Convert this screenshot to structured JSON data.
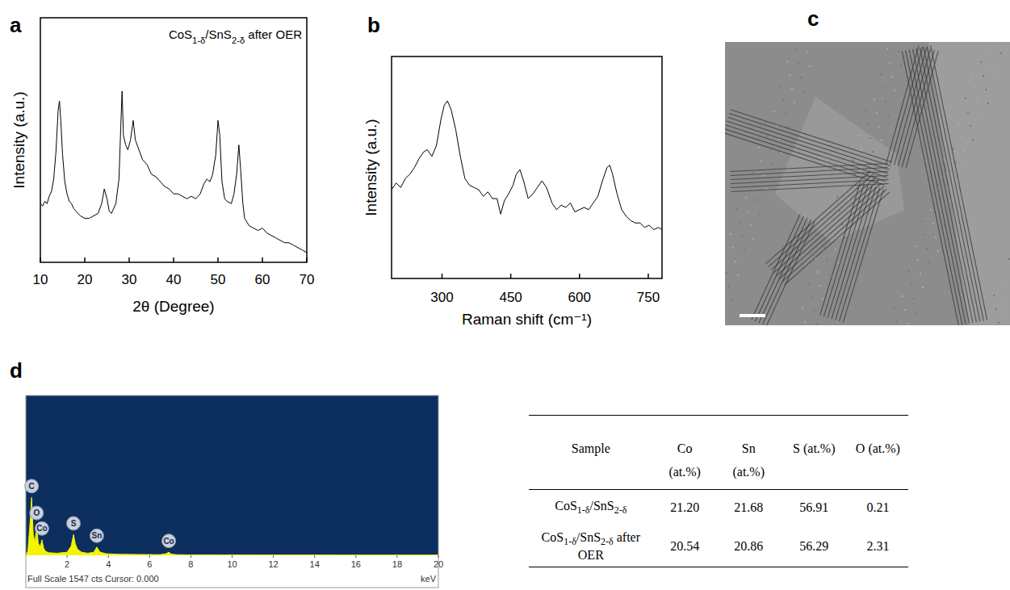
{
  "panel_labels": [
    "a",
    "b",
    "c",
    "d"
  ],
  "chart_data": [
    {
      "type": "line",
      "title": "CoS1-δ/SnS2-δ after OER",
      "x_label": "2θ (Degree)",
      "y_label": "Intensity (a.u.)",
      "xlim": [
        10,
        70
      ],
      "xticks": [
        10,
        20,
        30,
        40,
        50,
        60,
        70
      ],
      "ylim": [
        0,
        100
      ],
      "tick_labels": "x",
      "color": "#000000",
      "x": [
        10,
        10.5,
        11,
        11.5,
        12,
        12.5,
        13,
        13.5,
        14,
        14.3,
        14.6,
        15,
        15.5,
        16,
        16.5,
        17,
        17.5,
        18,
        19,
        20,
        21,
        22,
        23,
        23.8,
        24.4,
        25,
        25.5,
        26,
        27,
        27.7,
        28.1,
        28.4,
        28.7,
        29.2,
        29.7,
        30.3,
        30.9,
        31.4,
        32,
        33,
        34,
        35,
        36,
        37,
        38,
        39,
        40,
        41,
        42,
        43,
        44,
        45,
        46,
        46.8,
        47.5,
        48.2,
        48.8,
        49.5,
        50,
        50.4,
        50.9,
        51.5,
        52,
        53,
        53.6,
        54.2,
        54.7,
        55.1,
        55.6,
        56,
        57,
        58,
        59,
        60,
        61,
        62,
        63,
        64,
        65,
        66,
        67,
        68,
        69,
        70
      ],
      "values": [
        24,
        23,
        25,
        24,
        27,
        29,
        34,
        45,
        62,
        66,
        58,
        44,
        33,
        28,
        25,
        24,
        22,
        21,
        19,
        18,
        18,
        19,
        20,
        24,
        30,
        26,
        21,
        20,
        24,
        34,
        55,
        70,
        52,
        48,
        46,
        50,
        58,
        50,
        47,
        42,
        40,
        36,
        35,
        33,
        31,
        30,
        28,
        28,
        27,
        26,
        27,
        26,
        28,
        32,
        34,
        33,
        36,
        44,
        58,
        52,
        33,
        26,
        25,
        24,
        28,
        36,
        48,
        38,
        24,
        18,
        15,
        14,
        13,
        14,
        12,
        11,
        10,
        9,
        8,
        8,
        7,
        6,
        5,
        4
      ]
    },
    {
      "type": "line",
      "x_label": "Raman shift (cm⁻¹)",
      "y_label": "Intensity (a.u.)",
      "xlim": [
        190,
        780
      ],
      "xticks": [
        300,
        450,
        600,
        750
      ],
      "ylim": [
        0,
        100
      ],
      "tick_labels": "x",
      "color": "#000000",
      "x": [
        190,
        200,
        210,
        220,
        230,
        240,
        250,
        260,
        268,
        278,
        288,
        298,
        305,
        312,
        320,
        330,
        340,
        350,
        360,
        370,
        380,
        390,
        400,
        410,
        420,
        428,
        436,
        445,
        455,
        462,
        470,
        478,
        488,
        498,
        508,
        518,
        528,
        540,
        550,
        560,
        570,
        580,
        590,
        600,
        610,
        620,
        630,
        640,
        650,
        660,
        666,
        672,
        682,
        692,
        702,
        712,
        722,
        732,
        742,
        752,
        762,
        772,
        780
      ],
      "values": [
        40,
        43,
        41,
        45,
        47,
        50,
        54,
        57,
        58,
        55,
        60,
        72,
        78,
        80,
        76,
        67,
        55,
        45,
        42,
        41,
        40,
        37,
        39,
        36,
        36,
        29,
        35,
        38,
        42,
        47,
        49,
        44,
        36,
        38,
        41,
        44,
        41,
        34,
        31,
        33,
        32,
        34,
        30,
        31,
        32,
        31,
        34,
        37,
        44,
        50,
        51,
        47,
        38,
        31,
        28,
        26,
        25,
        25,
        23,
        24,
        22,
        23,
        22
      ]
    },
    {
      "type": "area",
      "x_label": "keV",
      "caption": "Full Scale 1547 cts Cursor: 0.000",
      "xlim": [
        0,
        20
      ],
      "xticks": [
        2,
        4,
        6,
        8,
        10,
        12,
        14,
        16,
        18,
        20
      ],
      "ylim": [
        0,
        1547
      ],
      "tick_labels": "x",
      "color": "#f5f500",
      "x": [
        0,
        0.1,
        0.2,
        0.28,
        0.36,
        0.45,
        0.52,
        0.6,
        0.7,
        0.78,
        0.86,
        0.95,
        1.1,
        1.5,
        2.0,
        2.2,
        2.31,
        2.4,
        2.5,
        2.7,
        3.0,
        3.3,
        3.44,
        3.6,
        3.9,
        4.5,
        5.5,
        6.5,
        6.8,
        6.93,
        7.05,
        7.3,
        8,
        10,
        12,
        14,
        16,
        18,
        20
      ],
      "values": [
        0,
        40,
        300,
        560,
        200,
        120,
        300,
        120,
        80,
        150,
        70,
        40,
        25,
        20,
        30,
        90,
        200,
        110,
        60,
        30,
        20,
        30,
        80,
        30,
        15,
        10,
        8,
        6,
        15,
        30,
        12,
        6,
        4,
        3,
        2,
        2,
        1,
        1,
        1
      ],
      "annotations": [
        {
          "text": "C",
          "x": 0.28
        },
        {
          "text": "O",
          "x": 0.52
        },
        {
          "text": "Co",
          "x": 0.78
        },
        {
          "text": "S",
          "x": 2.31
        },
        {
          "text": "Sn",
          "x": 3.44
        },
        {
          "text": "Co",
          "x": 6.93
        }
      ]
    }
  ],
  "table": {
    "columns": [
      "Sample",
      "Co",
      "Sn",
      "S (at.%)",
      "O (at.%)"
    ],
    "units": [
      null,
      "(at.%)",
      "(at.%)",
      null,
      null
    ],
    "rows": [
      [
        "CoS1-δ/SnS2-δ",
        "21.20",
        "21.68",
        "56.91",
        "0.21"
      ],
      [
        "CoS1-δ/SnS2-δ after OER",
        "20.54",
        "20.86",
        "56.29",
        "2.31"
      ]
    ]
  }
}
